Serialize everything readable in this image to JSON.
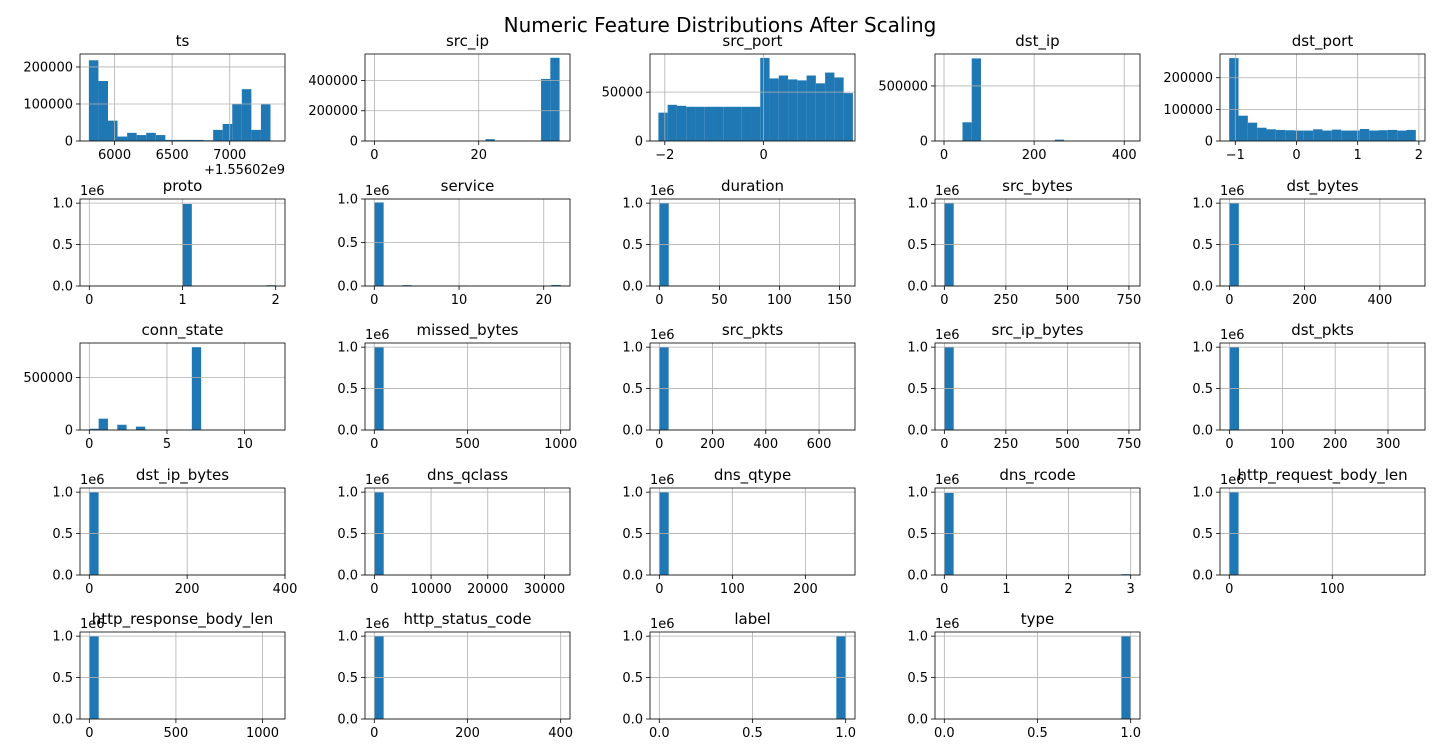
{
  "title": "Numeric Feature Distributions After Scaling",
  "colors": {
    "bar": "#1f77b4",
    "grid": "#b0b0b0",
    "axes": "#000000"
  },
  "chart_data": [
    {
      "type": "bar",
      "title": "ts",
      "xlim": [
        5700,
        7480
      ],
      "ylim": [
        0,
        235000
      ],
      "xticks": [
        {
          "v": 6000,
          "l": "6000"
        },
        {
          "v": 6500,
          "l": "6500"
        },
        {
          "v": 7000,
          "l": "7000"
        }
      ],
      "yticks": [
        {
          "v": 0,
          "l": "0"
        },
        {
          "v": 100000,
          "l": "100000"
        },
        {
          "v": 200000,
          "l": "200000"
        }
      ],
      "offset_label": "+1.55602e9",
      "multiplier": "",
      "bin_start": 5777,
      "bin_width": 83,
      "values": [
        218000,
        162000,
        55000,
        12000,
        22000,
        16000,
        22000,
        16000,
        3000,
        3000,
        3000,
        3000,
        2000,
        30000,
        46000,
        100000,
        140000,
        30000,
        99000
      ]
    },
    {
      "type": "bar",
      "title": "src_ip",
      "xlim": [
        -1.8,
        37.5
      ],
      "ylim": [
        0,
        575000
      ],
      "xticks": [
        {
          "v": 0,
          "l": "0"
        },
        {
          "v": 20,
          "l": "20"
        }
      ],
      "yticks": [
        {
          "v": 0,
          "l": "0"
        },
        {
          "v": 200000,
          "l": "200000"
        },
        {
          "v": 400000,
          "l": "400000"
        }
      ],
      "offset_label": "",
      "multiplier": "",
      "bin_start": 0,
      "bin_width": 1.775,
      "values": [
        1500,
        0,
        0,
        0,
        0,
        0,
        0,
        0,
        0,
        0,
        0,
        0,
        12000,
        0,
        0,
        0,
        0,
        0,
        410000,
        550000
      ]
    },
    {
      "type": "bar",
      "title": "src_port",
      "xlim": [
        -2.3,
        1.85
      ],
      "ylim": [
        0,
        89000
      ],
      "xticks": [
        {
          "v": -2,
          "l": "−2"
        },
        {
          "v": 0,
          "l": "0"
        }
      ],
      "yticks": [
        {
          "v": 0,
          "l": "0"
        },
        {
          "v": 50000,
          "l": "50000"
        }
      ],
      "offset_label": "",
      "multiplier": "",
      "bin_start": -2.13,
      "bin_width": 0.1875,
      "values": [
        29000,
        37000,
        36000,
        35000,
        35000,
        35000,
        35000,
        35000,
        35000,
        35000,
        35000,
        85000,
        64000,
        67000,
        63000,
        62000,
        67000,
        59000,
        70000,
        65000,
        49000
      ]
    },
    {
      "type": "bar",
      "title": "dst_ip",
      "xlim": [
        -20,
        435
      ],
      "ylim": [
        0,
        790000
      ],
      "xticks": [
        {
          "v": 0,
          "l": "0"
        },
        {
          "v": 200,
          "l": "200"
        },
        {
          "v": 400,
          "l": "400"
        }
      ],
      "yticks": [
        {
          "v": 0,
          "l": "0"
        },
        {
          "v": 500000,
          "l": "500000"
        }
      ],
      "offset_label": "",
      "multiplier": "",
      "bin_start": 0,
      "bin_width": 20.5,
      "values": [
        800,
        0,
        170000,
        750000,
        0,
        0,
        0,
        0,
        0,
        0,
        0,
        0,
        12000,
        0,
        0,
        0,
        0,
        0,
        0,
        0
      ]
    },
    {
      "type": "bar",
      "title": "dst_port",
      "xlim": [
        -1.25,
        2.1
      ],
      "ylim": [
        0,
        275000
      ],
      "xticks": [
        {
          "v": -1,
          "l": "−1"
        },
        {
          "v": 0,
          "l": "0"
        },
        {
          "v": 1,
          "l": "1"
        },
        {
          "v": 2,
          "l": "2"
        }
      ],
      "yticks": [
        {
          "v": 0,
          "l": "0"
        },
        {
          "v": 100000,
          "l": "100000"
        },
        {
          "v": 200000,
          "l": "200000"
        }
      ],
      "offset_label": "",
      "multiplier": "",
      "bin_start": -1.1,
      "bin_width": 0.1525,
      "values": [
        262000,
        80000,
        58000,
        42000,
        37000,
        35000,
        34000,
        33000,
        33000,
        37000,
        33000,
        36000,
        33000,
        33000,
        38000,
        33000,
        34000,
        35000,
        33000,
        35000
      ]
    },
    {
      "type": "bar",
      "title": "proto",
      "xlim": [
        -0.1,
        2.1
      ],
      "ylim": [
        0,
        1050000
      ],
      "xticks": [
        {
          "v": 0,
          "l": "0"
        },
        {
          "v": 1,
          "l": "1"
        },
        {
          "v": 2,
          "l": "2"
        }
      ],
      "yticks": [
        {
          "v": 0,
          "l": "0.0"
        },
        {
          "v": 500000,
          "l": "0.5"
        },
        {
          "v": 1000000,
          "l": "1.0"
        }
      ],
      "offset_label": "",
      "multiplier": "1e6",
      "bin_start": 0,
      "bin_width": 0.1,
      "values": [
        2000,
        0,
        0,
        0,
        0,
        0,
        0,
        0,
        0,
        0,
        990000,
        0,
        0,
        0,
        0,
        0,
        0,
        0,
        0,
        10000
      ]
    },
    {
      "type": "bar",
      "title": "service",
      "xlim": [
        -1.1,
        23.1
      ],
      "ylim": [
        0,
        1000000
      ],
      "xticks": [
        {
          "v": 0,
          "l": "0"
        },
        {
          "v": 10,
          "l": "10"
        },
        {
          "v": 20,
          "l": "20"
        }
      ],
      "yticks": [
        {
          "v": 0,
          "l": "0.0"
        },
        {
          "v": 500000,
          "l": "0.5"
        },
        {
          "v": 1000000,
          "l": "1.0"
        }
      ],
      "offset_label": "",
      "multiplier": "1e6",
      "bin_start": 0,
      "bin_width": 1.1,
      "values": [
        960000,
        0,
        0,
        10000,
        0,
        0,
        0,
        0,
        0,
        6000,
        0,
        0,
        0,
        0,
        0,
        0,
        0,
        0,
        0,
        12000
      ]
    },
    {
      "type": "bar",
      "title": "duration",
      "xlim": [
        -7.8,
        163
      ],
      "ylim": [
        0,
        1050000
      ],
      "xticks": [
        {
          "v": 0,
          "l": "0"
        },
        {
          "v": 50,
          "l": "50"
        },
        {
          "v": 100,
          "l": "100"
        },
        {
          "v": 150,
          "l": "150"
        }
      ],
      "yticks": [
        {
          "v": 0,
          "l": "0.0"
        },
        {
          "v": 500000,
          "l": "0.5"
        },
        {
          "v": 1000000,
          "l": "1.0"
        }
      ],
      "offset_label": "",
      "multiplier": "1e6",
      "bin_start": 0,
      "bin_width": 7.8,
      "values": [
        1000000
      ]
    },
    {
      "type": "bar",
      "title": "src_bytes",
      "xlim": [
        -38,
        795
      ],
      "ylim": [
        0,
        1050000
      ],
      "xticks": [
        {
          "v": 0,
          "l": "0"
        },
        {
          "v": 250,
          "l": "250"
        },
        {
          "v": 500,
          "l": "500"
        },
        {
          "v": 750,
          "l": "750"
        }
      ],
      "yticks": [
        {
          "v": 0,
          "l": "0.0"
        },
        {
          "v": 500000,
          "l": "0.5"
        },
        {
          "v": 1000000,
          "l": "1.0"
        }
      ],
      "offset_label": "",
      "multiplier": "1e6",
      "bin_start": 0,
      "bin_width": 38,
      "values": [
        1000000
      ]
    },
    {
      "type": "bar",
      "title": "dst_bytes",
      "xlim": [
        -25,
        520
      ],
      "ylim": [
        0,
        1050000
      ],
      "xticks": [
        {
          "v": 0,
          "l": "0"
        },
        {
          "v": 200,
          "l": "200"
        },
        {
          "v": 400,
          "l": "400"
        }
      ],
      "yticks": [
        {
          "v": 0,
          "l": "0.0"
        },
        {
          "v": 500000,
          "l": "0.5"
        },
        {
          "v": 1000000,
          "l": "1.0"
        }
      ],
      "offset_label": "",
      "multiplier": "1e6",
      "bin_start": 0,
      "bin_width": 25,
      "values": [
        1000000
      ]
    },
    {
      "type": "bar",
      "title": "conn_state",
      "xlim": [
        -0.6,
        12.6
      ],
      "ylim": [
        0,
        830000
      ],
      "xticks": [
        {
          "v": 0,
          "l": "0"
        },
        {
          "v": 5,
          "l": "5"
        },
        {
          "v": 10,
          "l": "10"
        }
      ],
      "yticks": [
        {
          "v": 0,
          "l": "0"
        },
        {
          "v": 500000,
          "l": "500000"
        }
      ],
      "offset_label": "",
      "multiplier": "",
      "bin_start": 0,
      "bin_width": 0.6,
      "values": [
        12000,
        108000,
        0,
        50000,
        0,
        32000,
        0,
        0,
        0,
        0,
        0,
        790000
      ]
    },
    {
      "type": "bar",
      "title": "missed_bytes",
      "xlim": [
        -50,
        1050
      ],
      "ylim": [
        0,
        1050000
      ],
      "xticks": [
        {
          "v": 0,
          "l": "0"
        },
        {
          "v": 500,
          "l": "500"
        },
        {
          "v": 1000,
          "l": "1000"
        }
      ],
      "yticks": [
        {
          "v": 0,
          "l": "0.0"
        },
        {
          "v": 500000,
          "l": "0.5"
        },
        {
          "v": 1000000,
          "l": "1.0"
        }
      ],
      "offset_label": "",
      "multiplier": "1e6",
      "bin_start": 0,
      "bin_width": 50,
      "values": [
        1000000
      ]
    },
    {
      "type": "bar",
      "title": "src_pkts",
      "xlim": [
        -35,
        735
      ],
      "ylim": [
        0,
        1050000
      ],
      "xticks": [
        {
          "v": 0,
          "l": "0"
        },
        {
          "v": 200,
          "l": "200"
        },
        {
          "v": 400,
          "l": "400"
        },
        {
          "v": 600,
          "l": "600"
        }
      ],
      "yticks": [
        {
          "v": 0,
          "l": "0.0"
        },
        {
          "v": 500000,
          "l": "0.5"
        },
        {
          "v": 1000000,
          "l": "1.0"
        }
      ],
      "offset_label": "",
      "multiplier": "1e6",
      "bin_start": 0,
      "bin_width": 35,
      "values": [
        1000000
      ]
    },
    {
      "type": "bar",
      "title": "src_ip_bytes",
      "xlim": [
        -38,
        795
      ],
      "ylim": [
        0,
        1050000
      ],
      "xticks": [
        {
          "v": 0,
          "l": "0"
        },
        {
          "v": 250,
          "l": "250"
        },
        {
          "v": 500,
          "l": "500"
        },
        {
          "v": 750,
          "l": "750"
        }
      ],
      "yticks": [
        {
          "v": 0,
          "l": "0.0"
        },
        {
          "v": 500000,
          "l": "0.5"
        },
        {
          "v": 1000000,
          "l": "1.0"
        }
      ],
      "offset_label": "",
      "multiplier": "1e6",
      "bin_start": 0,
      "bin_width": 38,
      "values": [
        1000000
      ]
    },
    {
      "type": "bar",
      "title": "dst_pkts",
      "xlim": [
        -18,
        370
      ],
      "ylim": [
        0,
        1050000
      ],
      "xticks": [
        {
          "v": 0,
          "l": "0"
        },
        {
          "v": 100,
          "l": "100"
        },
        {
          "v": 200,
          "l": "200"
        },
        {
          "v": 300,
          "l": "300"
        }
      ],
      "yticks": [
        {
          "v": 0,
          "l": "0.0"
        },
        {
          "v": 500000,
          "l": "0.5"
        },
        {
          "v": 1000000,
          "l": "1.0"
        }
      ],
      "offset_label": "",
      "multiplier": "1e6",
      "bin_start": 0,
      "bin_width": 18,
      "values": [
        1000000
      ]
    },
    {
      "type": "bar",
      "title": "dst_ip_bytes",
      "xlim": [
        -19,
        400
      ],
      "ylim": [
        0,
        1050000
      ],
      "xticks": [
        {
          "v": 0,
          "l": "0"
        },
        {
          "v": 200,
          "l": "200"
        },
        {
          "v": 400,
          "l": "400"
        }
      ],
      "yticks": [
        {
          "v": 0,
          "l": "0.0"
        },
        {
          "v": 500000,
          "l": "0.5"
        },
        {
          "v": 1000000,
          "l": "1.0"
        }
      ],
      "offset_label": "",
      "multiplier": "1e6",
      "bin_start": 0,
      "bin_width": 19,
      "values": [
        1000000
      ]
    },
    {
      "type": "bar",
      "title": "dns_qclass",
      "xlim": [
        -1650,
        34500
      ],
      "ylim": [
        0,
        1050000
      ],
      "xticks": [
        {
          "v": 0,
          "l": "0"
        },
        {
          "v": 10000,
          "l": "10000"
        },
        {
          "v": 20000,
          "l": "20000"
        },
        {
          "v": 30000,
          "l": "30000"
        }
      ],
      "yticks": [
        {
          "v": 0,
          "l": "0.0"
        },
        {
          "v": 500000,
          "l": "0.5"
        },
        {
          "v": 1000000,
          "l": "1.0"
        }
      ],
      "offset_label": "",
      "multiplier": "1e6",
      "bin_start": 0,
      "bin_width": 1650,
      "values": [
        1000000
      ]
    },
    {
      "type": "bar",
      "title": "dns_qtype",
      "xlim": [
        -12.8,
        268
      ],
      "ylim": [
        0,
        1050000
      ],
      "xticks": [
        {
          "v": 0,
          "l": "0"
        },
        {
          "v": 100,
          "l": "100"
        },
        {
          "v": 200,
          "l": "200"
        }
      ],
      "yticks": [
        {
          "v": 0,
          "l": "0.0"
        },
        {
          "v": 500000,
          "l": "0.5"
        },
        {
          "v": 1000000,
          "l": "1.0"
        }
      ],
      "offset_label": "",
      "multiplier": "1e6",
      "bin_start": 0,
      "bin_width": 12.8,
      "values": [
        1000000
      ]
    },
    {
      "type": "bar",
      "title": "dns_rcode",
      "xlim": [
        -0.15,
        3.15
      ],
      "ylim": [
        0,
        1050000
      ],
      "xticks": [
        {
          "v": 0,
          "l": "0"
        },
        {
          "v": 1,
          "l": "1"
        },
        {
          "v": 2,
          "l": "2"
        },
        {
          "v": 3,
          "l": "3"
        }
      ],
      "yticks": [
        {
          "v": 0,
          "l": "0.0"
        },
        {
          "v": 500000,
          "l": "0.5"
        },
        {
          "v": 1000000,
          "l": "1.0"
        }
      ],
      "offset_label": "",
      "multiplier": "1e6",
      "bin_start": 0,
      "bin_width": 0.15,
      "values": [
        990000,
        0,
        0,
        0,
        0,
        0,
        0,
        0,
        0,
        0,
        0,
        0,
        0,
        0,
        0,
        0,
        0,
        0,
        0,
        10000
      ]
    },
    {
      "type": "bar",
      "title": "http_request_body_len",
      "xlim": [
        -9,
        190
      ],
      "ylim": [
        0,
        1050000
      ],
      "xticks": [
        {
          "v": 0,
          "l": "0"
        },
        {
          "v": 100,
          "l": "100"
        }
      ],
      "yticks": [
        {
          "v": 0,
          "l": "0.0"
        },
        {
          "v": 500000,
          "l": "0.5"
        },
        {
          "v": 1000000,
          "l": "1.0"
        }
      ],
      "offset_label": "",
      "multiplier": "1e6",
      "bin_start": 0,
      "bin_width": 9,
      "values": [
        1000000
      ]
    },
    {
      "type": "bar",
      "title": "http_response_body_len",
      "xlim": [
        -54,
        1130
      ],
      "ylim": [
        0,
        1050000
      ],
      "xticks": [
        {
          "v": 0,
          "l": "0"
        },
        {
          "v": 500,
          "l": "500"
        },
        {
          "v": 1000,
          "l": "1000"
        }
      ],
      "yticks": [
        {
          "v": 0,
          "l": "0.0"
        },
        {
          "v": 500000,
          "l": "0.5"
        },
        {
          "v": 1000000,
          "l": "1.0"
        }
      ],
      "offset_label": "",
      "multiplier": "1e6",
      "bin_start": 0,
      "bin_width": 54,
      "values": [
        1000000
      ]
    },
    {
      "type": "bar",
      "title": "http_status_code",
      "xlim": [
        -20,
        420
      ],
      "ylim": [
        0,
        1050000
      ],
      "xticks": [
        {
          "v": 0,
          "l": "0"
        },
        {
          "v": 200,
          "l": "200"
        },
        {
          "v": 400,
          "l": "400"
        }
      ],
      "yticks": [
        {
          "v": 0,
          "l": "0.0"
        },
        {
          "v": 500000,
          "l": "0.5"
        },
        {
          "v": 1000000,
          "l": "1.0"
        }
      ],
      "offset_label": "",
      "multiplier": "1e6",
      "bin_start": 0,
      "bin_width": 20,
      "values": [
        1000000
      ]
    },
    {
      "type": "bar",
      "title": "label",
      "xlim": [
        -0.05,
        1.05
      ],
      "ylim": [
        0,
        1050000
      ],
      "xticks": [
        {
          "v": 0,
          "l": "0.0"
        },
        {
          "v": 0.5,
          "l": "0.5"
        },
        {
          "v": 1,
          "l": "1.0"
        }
      ],
      "yticks": [
        {
          "v": 0,
          "l": "0.0"
        },
        {
          "v": 500000,
          "l": "0.5"
        },
        {
          "v": 1000000,
          "l": "1.0"
        }
      ],
      "offset_label": "",
      "multiplier": "1e6",
      "bin_start": 0.95,
      "bin_width": 0.05,
      "values": [
        1000000
      ]
    },
    {
      "type": "bar",
      "title": "type",
      "xlim": [
        -0.05,
        1.05
      ],
      "ylim": [
        0,
        1050000
      ],
      "xticks": [
        {
          "v": 0,
          "l": "0.0"
        },
        {
          "v": 0.5,
          "l": "0.5"
        },
        {
          "v": 1,
          "l": "1.0"
        }
      ],
      "yticks": [
        {
          "v": 0,
          "l": "0.0"
        },
        {
          "v": 500000,
          "l": "0.5"
        },
        {
          "v": 1000000,
          "l": "1.0"
        }
      ],
      "offset_label": "",
      "multiplier": "1e6",
      "bin_start": 0.95,
      "bin_width": 0.05,
      "values": [
        1000000
      ]
    }
  ]
}
